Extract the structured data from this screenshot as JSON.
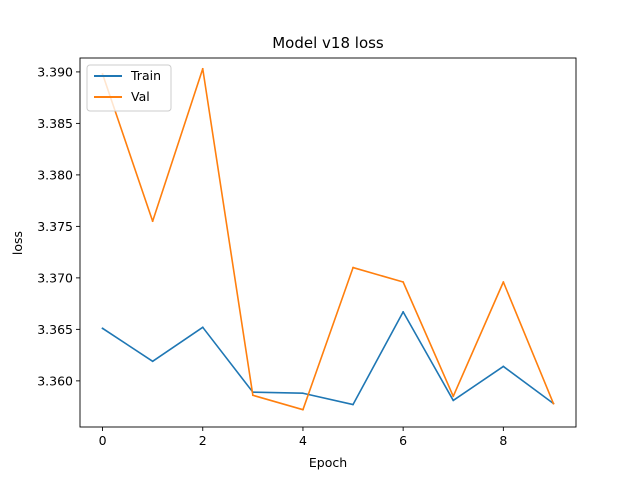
{
  "chart_data": {
    "type": "line",
    "title": "Model v18 loss",
    "xlabel": "Epoch",
    "ylabel": "loss",
    "xlim": [
      -0.45,
      9.45
    ],
    "ylim": [
      3.35552,
      3.39135
    ],
    "xticks": [
      0,
      2,
      4,
      6,
      8
    ],
    "xtick_labels": [
      "0",
      "2",
      "4",
      "6",
      "8"
    ],
    "yticks": [
      3.36,
      3.365,
      3.37,
      3.375,
      3.38,
      3.385,
      3.39
    ],
    "ytick_labels": [
      "3.360",
      "3.365",
      "3.370",
      "3.375",
      "3.380",
      "3.385",
      "3.390"
    ],
    "grid": false,
    "legend_position": "upper-left",
    "x": [
      0,
      1,
      2,
      3,
      4,
      5,
      6,
      7,
      8,
      9
    ],
    "series": [
      {
        "name": "Train",
        "color": "#1f77b4",
        "values": [
          3.3651,
          3.3619,
          3.3652,
          3.3589,
          3.3588,
          3.3577,
          3.3667,
          3.3581,
          3.3614,
          3.3578
        ]
      },
      {
        "name": "Val",
        "color": "#ff7f0e",
        "values": [
          3.3898,
          3.3755,
          3.3903,
          3.3586,
          3.3572,
          3.371,
          3.3696,
          3.3585,
          3.3696,
          3.3578
        ]
      }
    ]
  }
}
